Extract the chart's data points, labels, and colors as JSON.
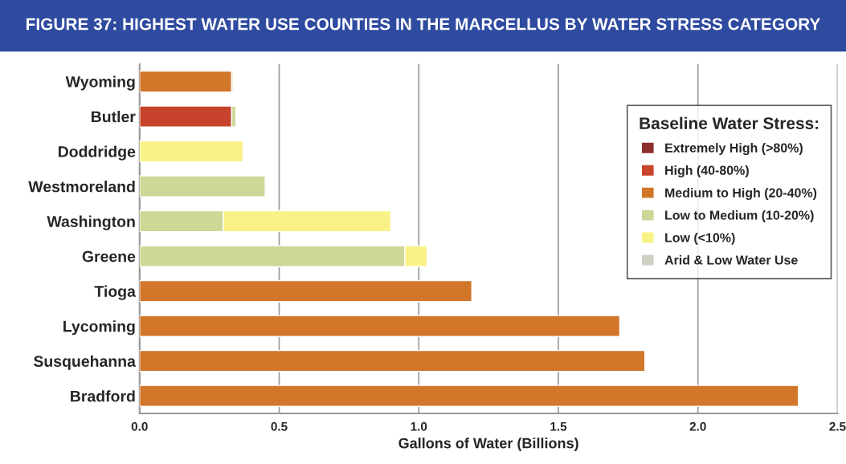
{
  "chart_data": {
    "type": "bar",
    "orientation": "horizontal",
    "stacked": true,
    "title": "FIGURE 37: HIGHEST WATER USE COUNTIES IN THE MARCELLUS BY WATER STRESS CATEGORY",
    "xlabel": "Gallons of Water (Billions)",
    "legend_title": "Baseline Water Stress:",
    "legend": "top right",
    "grid": "x",
    "categories": [
      "Wyoming",
      "Butler",
      "Doddridge",
      "Westmoreland",
      "Washington",
      "Greene",
      "Tioga",
      "Lycoming",
      "Susquehanna",
      "Bradford"
    ],
    "xlim": [
      0,
      2.5
    ],
    "xticks": [
      {
        "value": 0,
        "label": "0.0"
      },
      {
        "value": 0.5,
        "label": "0.5"
      },
      {
        "value": 1,
        "label": "1.0"
      },
      {
        "value": 1.5,
        "label": "1.5"
      },
      {
        "value": 2,
        "label": "2.0"
      },
      {
        "value": 2.5,
        "label": "2.5"
      }
    ],
    "series": [
      {
        "name": "Extremely High (>80%)",
        "color": "#8e2f2b",
        "values": [
          null,
          null,
          null,
          null,
          null,
          null,
          null,
          null,
          null,
          null
        ]
      },
      {
        "name": "High (40-80%)",
        "color": "#c8432b",
        "values": [
          null,
          0.33,
          null,
          null,
          null,
          null,
          null,
          null,
          null,
          null
        ]
      },
      {
        "name": "Medium to High (20-40%)",
        "color": "#d2762a",
        "values": [
          0.33,
          null,
          null,
          null,
          null,
          null,
          1.19,
          1.72,
          1.81,
          2.36
        ]
      },
      {
        "name": "Low to Medium (10-20%)",
        "color": "#cfd796",
        "values": [
          0.005,
          0.015,
          null,
          0.45,
          0.3,
          0.95,
          null,
          null,
          null,
          null
        ]
      },
      {
        "name": "Low (<10%)",
        "color": "#f9f286",
        "values": [
          null,
          null,
          0.37,
          null,
          0.6,
          0.08,
          null,
          null,
          null,
          null
        ]
      },
      {
        "name": "Arid & Low Water Use",
        "color": "#d0d0c4",
        "values": [
          null,
          null,
          null,
          null,
          null,
          null,
          null,
          null,
          null,
          null
        ]
      }
    ]
  }
}
